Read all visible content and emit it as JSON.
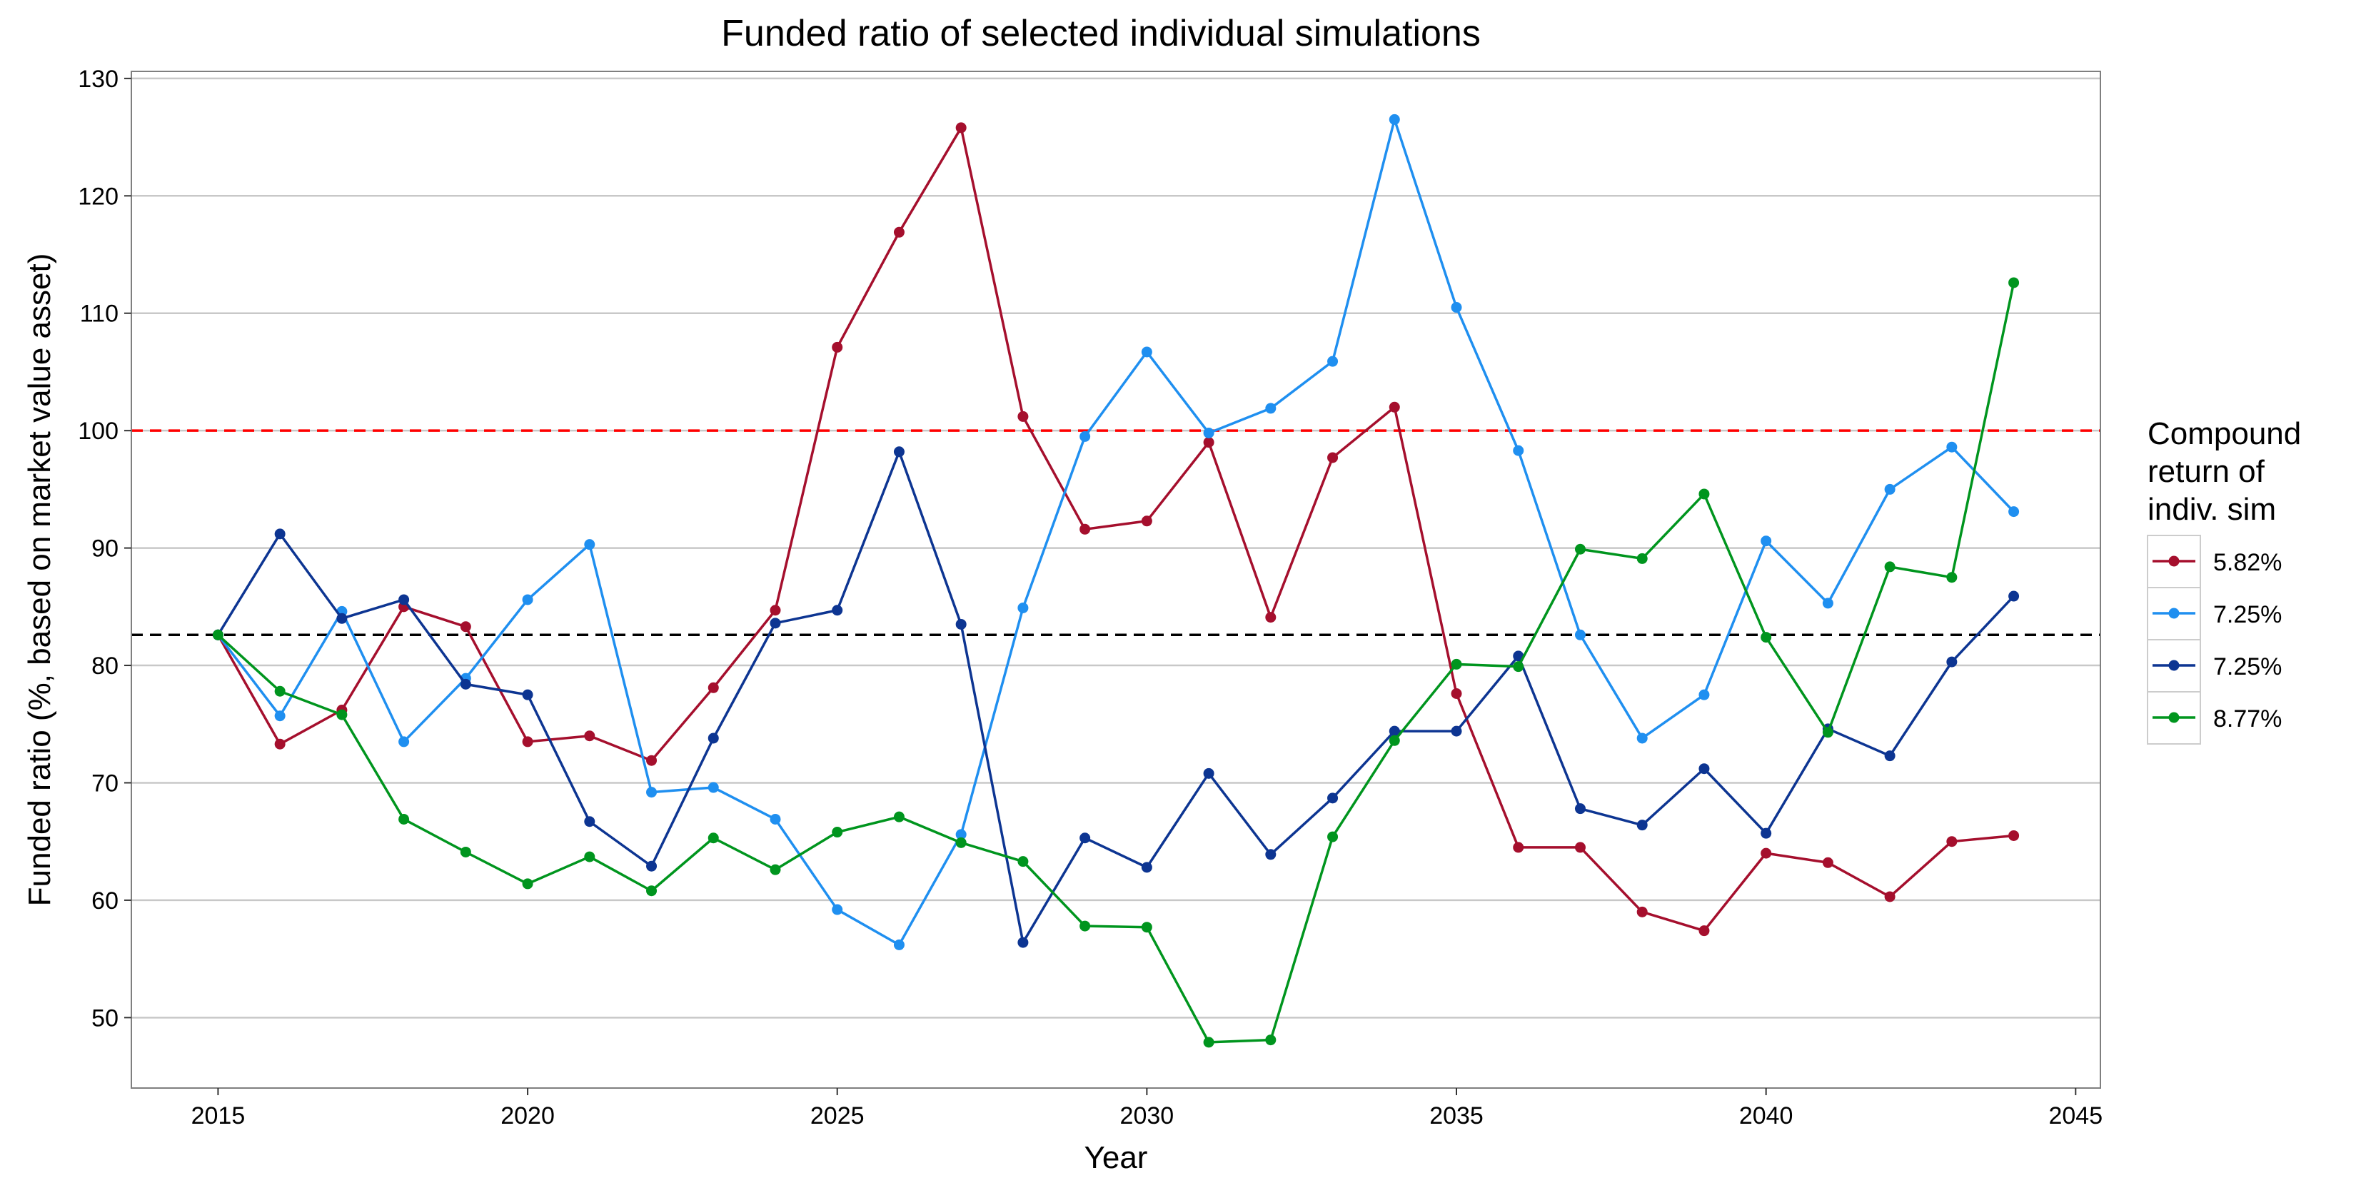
{
  "chart_data": {
    "type": "line",
    "title": "Funded ratio of selected individual simulations",
    "xlabel": "Year",
    "ylabel": "Funded ratio (%, based on market value asset)",
    "xlim": [
      2013.6,
      2045.4
    ],
    "ylim": [
      44,
      130.6
    ],
    "xticks": [
      2015,
      2020,
      2025,
      2030,
      2035,
      2040,
      2045
    ],
    "yticks": [
      50,
      60,
      70,
      80,
      90,
      100,
      110,
      120,
      130
    ],
    "grid": true,
    "legend": {
      "title": [
        "Compound",
        "return of",
        "indiv. sim"
      ],
      "placement": "right"
    },
    "reference_lines": [
      {
        "y": 100,
        "color": "#ff0000",
        "style": "dashed"
      },
      {
        "y": 82.6,
        "color": "#000000",
        "style": "dashed"
      }
    ],
    "x": [
      2015,
      2016,
      2017,
      2018,
      2019,
      2020,
      2021,
      2022,
      2023,
      2024,
      2025,
      2026,
      2027,
      2028,
      2029,
      2030,
      2031,
      2032,
      2033,
      2034,
      2035,
      2036,
      2037,
      2038,
      2039,
      2040,
      2041,
      2042,
      2043,
      2044
    ],
    "series": [
      {
        "name": "5.82%",
        "color": "#a50f2d",
        "values": [
          82.6,
          73.3,
          76.2,
          85.0,
          83.3,
          73.5,
          74.0,
          71.9,
          78.1,
          84.7,
          107.1,
          116.9,
          125.8,
          101.2,
          91.6,
          92.3,
          99.0,
          84.1,
          97.7,
          102.0,
          77.6,
          64.5,
          64.5,
          59.0,
          57.4,
          64.0,
          63.2,
          60.3,
          65.0,
          65.5
        ]
      },
      {
        "name": "7.25%",
        "color": "#1f8ff0",
        "values": [
          82.6,
          75.7,
          84.6,
          73.5,
          78.9,
          85.6,
          90.3,
          69.2,
          69.6,
          66.9,
          59.2,
          56.2,
          65.6,
          84.9,
          99.5,
          106.7,
          99.8,
          101.9,
          105.9,
          126.5,
          110.5,
          98.3,
          82.6,
          73.8,
          77.5,
          90.6,
          85.3,
          95.0,
          98.6,
          93.1
        ]
      },
      {
        "name": "7.25%",
        "color": "#0d3592",
        "values": [
          82.6,
          91.2,
          84.0,
          85.6,
          78.4,
          77.5,
          66.7,
          62.9,
          73.8,
          83.6,
          84.7,
          98.2,
          83.5,
          56.4,
          65.3,
          62.8,
          70.8,
          63.9,
          68.7,
          74.4,
          74.4,
          80.8,
          67.8,
          66.4,
          71.2,
          65.7,
          74.6,
          72.3,
          80.3,
          85.9
        ]
      },
      {
        "name": "8.77%",
        "color": "#00951e",
        "values": [
          82.6,
          77.8,
          75.8,
          66.9,
          64.1,
          61.4,
          63.7,
          60.8,
          65.3,
          62.6,
          65.8,
          67.1,
          64.9,
          63.3,
          57.8,
          57.7,
          47.9,
          48.1,
          65.4,
          73.6,
          80.1,
          79.9,
          89.9,
          89.1,
          94.6,
          82.4,
          74.3,
          88.4,
          87.5,
          112.6
        ]
      }
    ]
  }
}
